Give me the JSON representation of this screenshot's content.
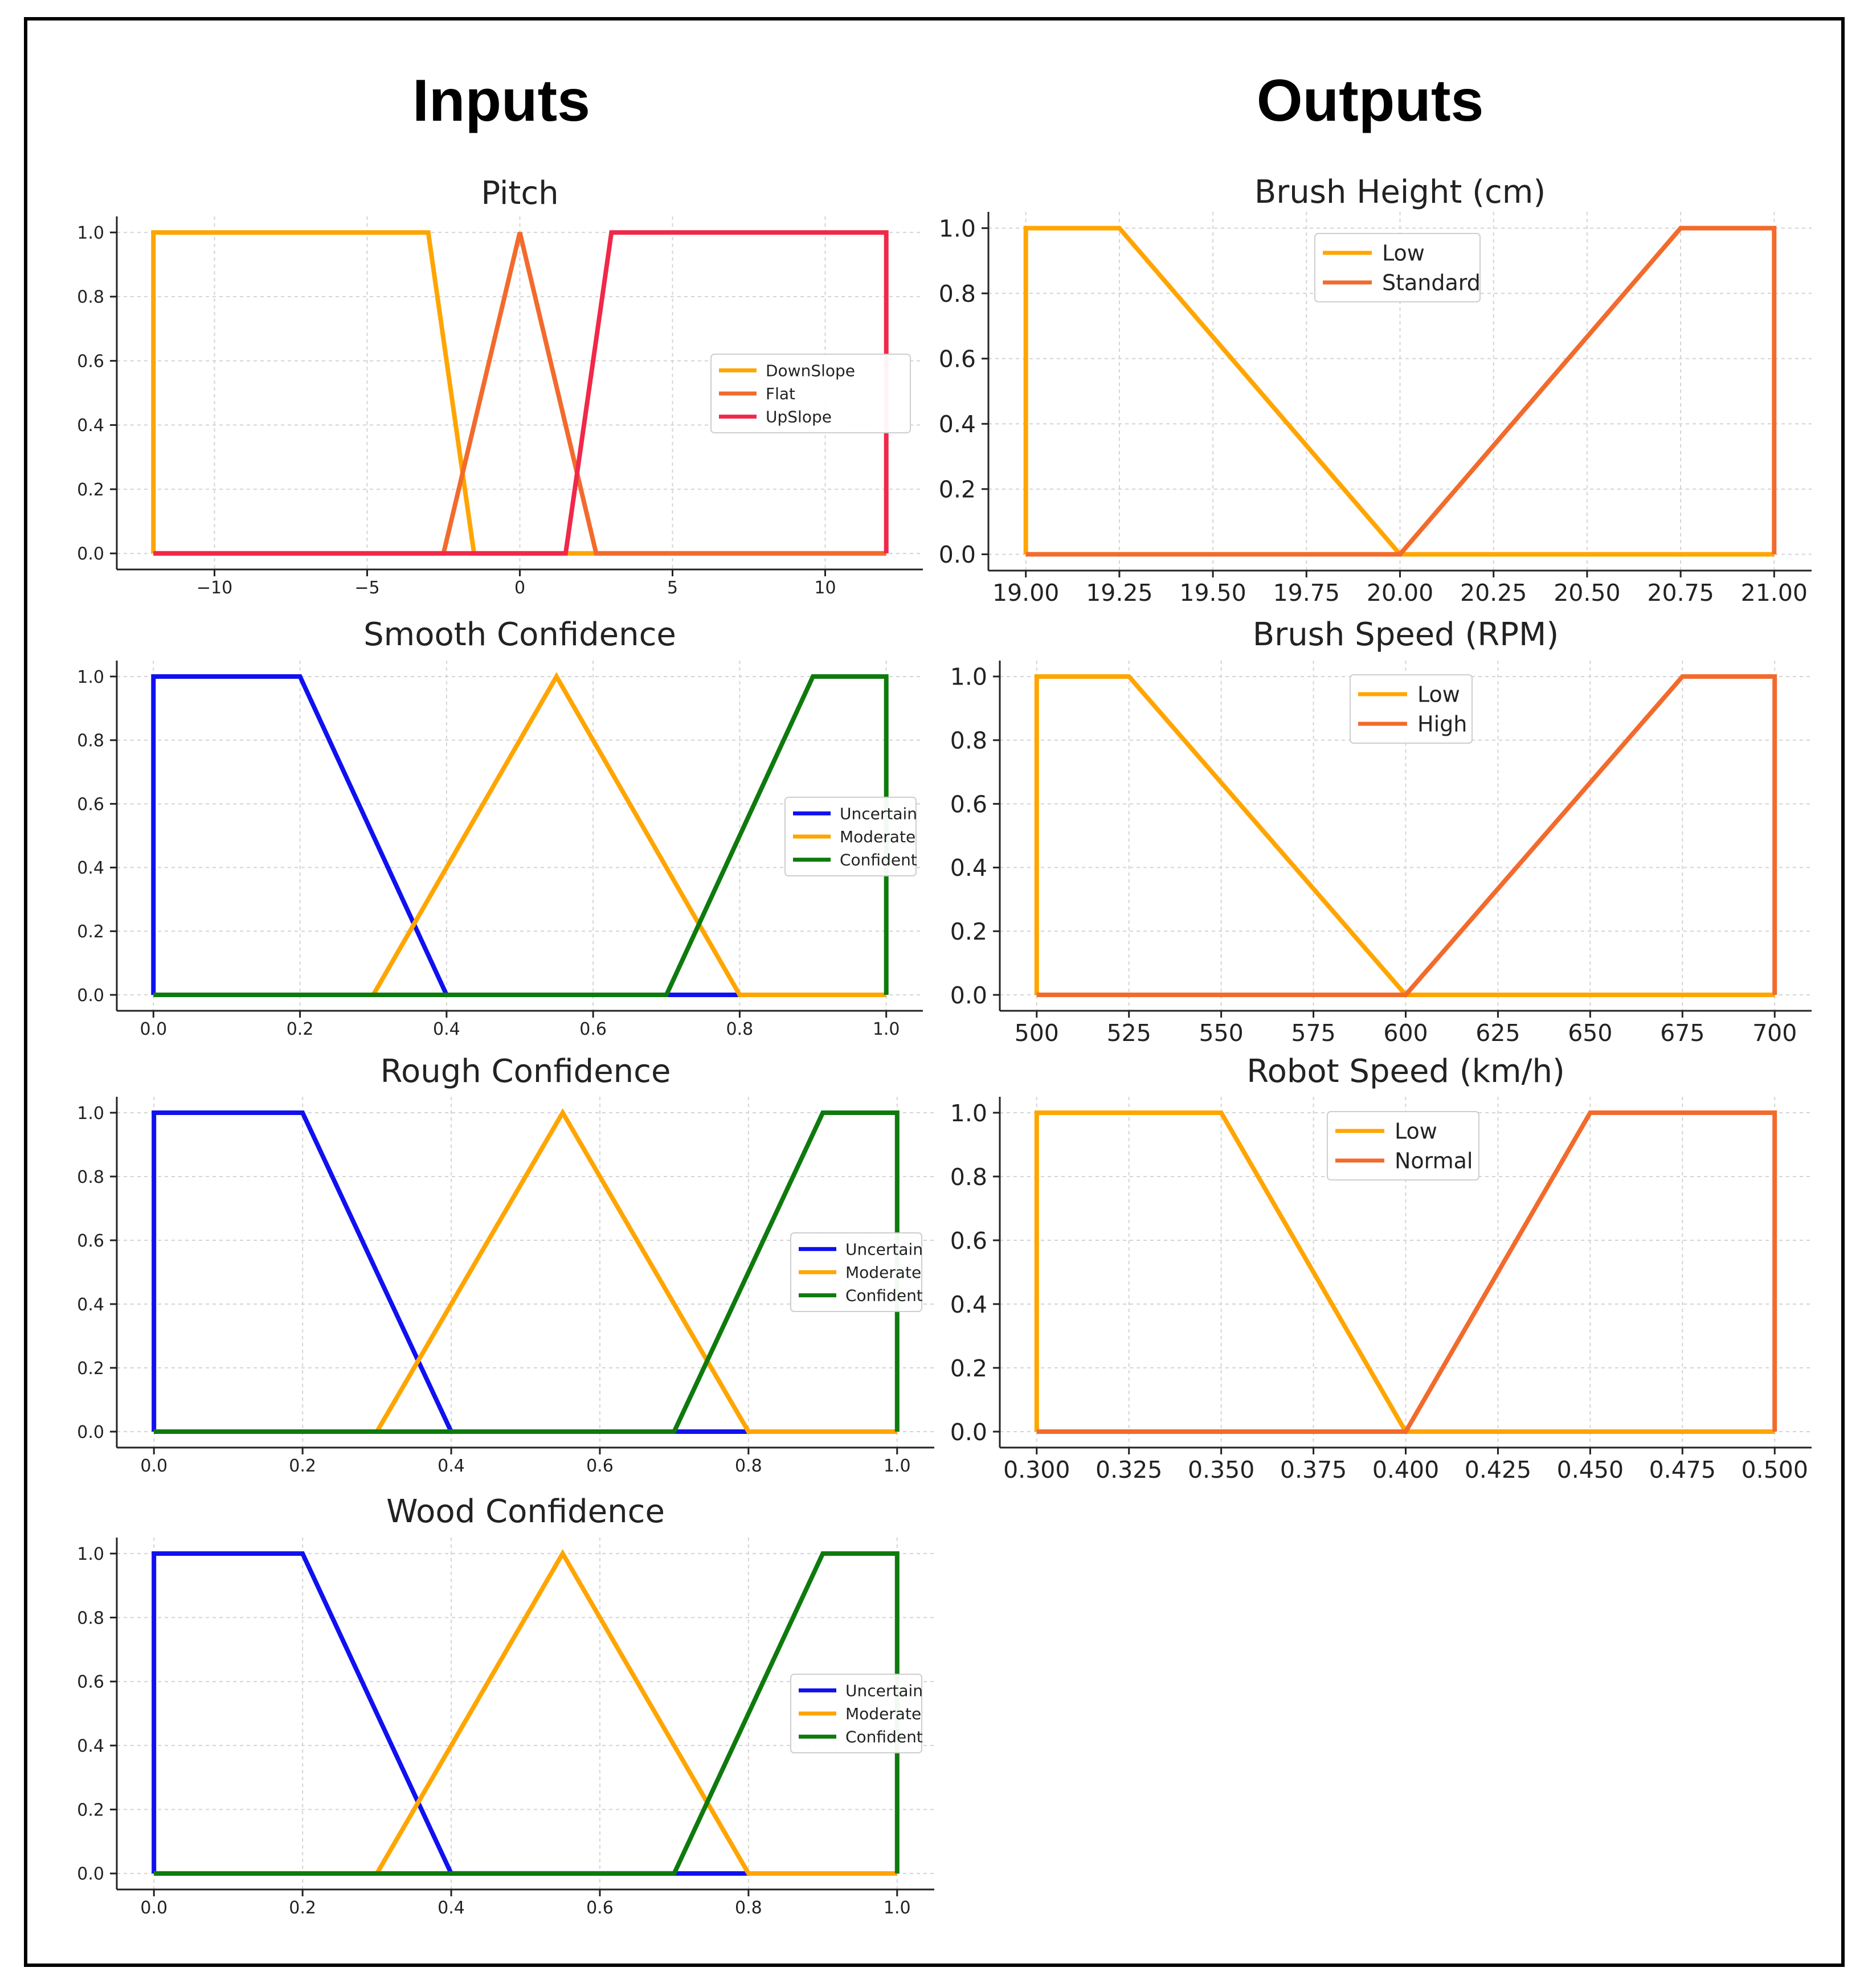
{
  "headings": {
    "inputs": "Inputs",
    "outputs": "Outputs"
  },
  "chart_data": [
    {
      "id": "pitch",
      "type": "line",
      "title": "Pitch",
      "xlim": [
        -13.2,
        13.2
      ],
      "ylim": [
        -0.05,
        1.05
      ],
      "xticks": [
        {
          "v": -10,
          "label": "−10"
        },
        {
          "v": -5,
          "label": "−5"
        },
        {
          "v": 0,
          "label": "0"
        },
        {
          "v": 5,
          "label": "5"
        },
        {
          "v": 10,
          "label": "10"
        }
      ],
      "yticks": [
        0,
        0.2,
        0.4,
        0.6,
        0.8,
        1.0
      ],
      "legend": "center-right",
      "grid": true,
      "series": [
        {
          "name": "DownSlope",
          "color": "#FFA500",
          "points": [
            [
              -12,
              0
            ],
            [
              -12,
              1
            ],
            [
              -3,
              1
            ],
            [
              -1.5,
              0
            ],
            [
              12,
              0
            ]
          ]
        },
        {
          "name": "Flat",
          "color": "#F26B2C",
          "points": [
            [
              -12,
              0
            ],
            [
              -2.5,
              0
            ],
            [
              0,
              1
            ],
            [
              2.5,
              0
            ],
            [
              12,
              0
            ]
          ]
        },
        {
          "name": "UpSlope",
          "color": "#F0284A",
          "points": [
            [
              -12,
              0
            ],
            [
              1.5,
              0
            ],
            [
              3,
              1
            ],
            [
              12,
              1
            ],
            [
              12,
              0
            ]
          ]
        }
      ]
    },
    {
      "id": "smooth",
      "type": "line",
      "title": "Smooth Confidence",
      "xlim": [
        -0.05,
        1.05
      ],
      "ylim": [
        -0.05,
        1.05
      ],
      "xticks": [
        {
          "v": 0,
          "label": "0.0"
        },
        {
          "v": 0.2,
          "label": "0.2"
        },
        {
          "v": 0.4,
          "label": "0.4"
        },
        {
          "v": 0.6,
          "label": "0.6"
        },
        {
          "v": 0.8,
          "label": "0.8"
        },
        {
          "v": 1.0,
          "label": "1.0"
        }
      ],
      "yticks": [
        0,
        0.2,
        0.4,
        0.6,
        0.8,
        1.0
      ],
      "legend": "center-right",
      "grid": true,
      "series": [
        {
          "name": "Uncertain",
          "color": "#1010F0",
          "points": [
            [
              0,
              0
            ],
            [
              0,
              1
            ],
            [
              0.2,
              1
            ],
            [
              0.4,
              0
            ],
            [
              0.7,
              0
            ],
            [
              0.8,
              0
            ]
          ]
        },
        {
          "name": "Moderate",
          "color": "#FFA500",
          "points": [
            [
              0,
              0
            ],
            [
              0.3,
              0
            ],
            [
              0.55,
              1
            ],
            [
              0.8,
              0
            ],
            [
              1.0,
              0
            ]
          ]
        },
        {
          "name": "Confident",
          "color": "#0E7A0E",
          "points": [
            [
              0,
              0
            ],
            [
              0.7,
              0
            ],
            [
              0.9,
              1
            ],
            [
              1.0,
              1
            ],
            [
              1.0,
              0
            ]
          ]
        }
      ]
    },
    {
      "id": "rough",
      "type": "line",
      "title": "Rough Confidence",
      "xlim": [
        -0.05,
        1.05
      ],
      "ylim": [
        -0.05,
        1.05
      ],
      "xticks": [
        {
          "v": 0,
          "label": "0.0"
        },
        {
          "v": 0.2,
          "label": "0.2"
        },
        {
          "v": 0.4,
          "label": "0.4"
        },
        {
          "v": 0.6,
          "label": "0.6"
        },
        {
          "v": 0.8,
          "label": "0.8"
        },
        {
          "v": 1.0,
          "label": "1.0"
        }
      ],
      "yticks": [
        0,
        0.2,
        0.4,
        0.6,
        0.8,
        1.0
      ],
      "legend": "center-right",
      "grid": true,
      "series": [
        {
          "name": "Uncertain",
          "color": "#1010F0",
          "points": [
            [
              0,
              0
            ],
            [
              0,
              1
            ],
            [
              0.2,
              1
            ],
            [
              0.4,
              0
            ],
            [
              0.7,
              0
            ],
            [
              0.8,
              0
            ]
          ]
        },
        {
          "name": "Moderate",
          "color": "#FFA500",
          "points": [
            [
              0,
              0
            ],
            [
              0.3,
              0
            ],
            [
              0.55,
              1
            ],
            [
              0.8,
              0
            ],
            [
              1.0,
              0
            ]
          ]
        },
        {
          "name": "Confident",
          "color": "#0E7A0E",
          "points": [
            [
              0,
              0
            ],
            [
              0.7,
              0
            ],
            [
              0.9,
              1
            ],
            [
              1.0,
              1
            ],
            [
              1.0,
              0
            ]
          ]
        }
      ]
    },
    {
      "id": "wood",
      "type": "line",
      "title": "Wood Confidence",
      "xlim": [
        -0.05,
        1.05
      ],
      "ylim": [
        -0.05,
        1.05
      ],
      "xticks": [
        {
          "v": 0,
          "label": "0.0"
        },
        {
          "v": 0.2,
          "label": "0.2"
        },
        {
          "v": 0.4,
          "label": "0.4"
        },
        {
          "v": 0.6,
          "label": "0.6"
        },
        {
          "v": 0.8,
          "label": "0.8"
        },
        {
          "v": 1.0,
          "label": "1.0"
        }
      ],
      "yticks": [
        0,
        0.2,
        0.4,
        0.6,
        0.8,
        1.0
      ],
      "legend": "center-right",
      "grid": true,
      "series": [
        {
          "name": "Uncertain",
          "color": "#1010F0",
          "points": [
            [
              0,
              0
            ],
            [
              0,
              1
            ],
            [
              0.2,
              1
            ],
            [
              0.4,
              0
            ],
            [
              0.7,
              0
            ],
            [
              0.8,
              0
            ]
          ]
        },
        {
          "name": "Moderate",
          "color": "#FFA500",
          "points": [
            [
              0,
              0
            ],
            [
              0.3,
              0
            ],
            [
              0.55,
              1
            ],
            [
              0.8,
              0
            ],
            [
              1.0,
              0
            ]
          ]
        },
        {
          "name": "Confident",
          "color": "#0E7A0E",
          "points": [
            [
              0,
              0
            ],
            [
              0.7,
              0
            ],
            [
              0.9,
              1
            ],
            [
              1.0,
              1
            ],
            [
              1.0,
              0
            ]
          ]
        }
      ]
    },
    {
      "id": "brush_height",
      "type": "line",
      "title": "Brush Height (cm)",
      "xlim": [
        18.9,
        21.1
      ],
      "ylim": [
        -0.05,
        1.05
      ],
      "xticks": [
        {
          "v": 19.0,
          "label": "19.00"
        },
        {
          "v": 19.25,
          "label": "19.25"
        },
        {
          "v": 19.5,
          "label": "19.50"
        },
        {
          "v": 19.75,
          "label": "19.75"
        },
        {
          "v": 20.0,
          "label": "20.00"
        },
        {
          "v": 20.25,
          "label": "20.25"
        },
        {
          "v": 20.5,
          "label": "20.50"
        },
        {
          "v": 20.75,
          "label": "20.75"
        },
        {
          "v": 21.0,
          "label": "21.00"
        }
      ],
      "yticks": [
        0,
        0.2,
        0.4,
        0.6,
        0.8,
        1.0
      ],
      "legend": "upper-center",
      "grid": true,
      "series": [
        {
          "name": "Low",
          "color": "#FFA500",
          "points": [
            [
              19.0,
              0
            ],
            [
              19.0,
              1
            ],
            [
              19.25,
              1
            ],
            [
              20.0,
              0
            ],
            [
              21.0,
              0
            ]
          ]
        },
        {
          "name": "Standard",
          "color": "#F26B2C",
          "points": [
            [
              19.0,
              0
            ],
            [
              20.0,
              0
            ],
            [
              20.75,
              1
            ],
            [
              21.0,
              1
            ],
            [
              21.0,
              0
            ]
          ]
        }
      ]
    },
    {
      "id": "brush_speed",
      "type": "line",
      "title": "Brush Speed (RPM)",
      "xlim": [
        490,
        710
      ],
      "ylim": [
        -0.05,
        1.05
      ],
      "xticks": [
        {
          "v": 500,
          "label": "500"
        },
        {
          "v": 525,
          "label": "525"
        },
        {
          "v": 550,
          "label": "550"
        },
        {
          "v": 575,
          "label": "575"
        },
        {
          "v": 600,
          "label": "600"
        },
        {
          "v": 625,
          "label": "625"
        },
        {
          "v": 650,
          "label": "650"
        },
        {
          "v": 675,
          "label": "675"
        },
        {
          "v": 700,
          "label": "700"
        }
      ],
      "yticks": [
        0,
        0.2,
        0.4,
        0.6,
        0.8,
        1.0
      ],
      "legend": "upper-center",
      "grid": true,
      "series": [
        {
          "name": "Low",
          "color": "#FFA500",
          "points": [
            [
              500,
              0
            ],
            [
              500,
              1
            ],
            [
              525,
              1
            ],
            [
              600,
              0
            ],
            [
              700,
              0
            ]
          ]
        },
        {
          "name": "High",
          "color": "#F26B2C",
          "points": [
            [
              500,
              0
            ],
            [
              600,
              0
            ],
            [
              675,
              1
            ],
            [
              700,
              1
            ],
            [
              700,
              0
            ]
          ]
        }
      ]
    },
    {
      "id": "robot_speed",
      "type": "line",
      "title": "Robot Speed (km/h)",
      "xlim": [
        0.29,
        0.51
      ],
      "ylim": [
        -0.05,
        1.05
      ],
      "xticks": [
        {
          "v": 0.3,
          "label": "0.300"
        },
        {
          "v": 0.325,
          "label": "0.325"
        },
        {
          "v": 0.35,
          "label": "0.350"
        },
        {
          "v": 0.375,
          "label": "0.375"
        },
        {
          "v": 0.4,
          "label": "0.400"
        },
        {
          "v": 0.425,
          "label": "0.425"
        },
        {
          "v": 0.45,
          "label": "0.450"
        },
        {
          "v": 0.475,
          "label": "0.475"
        },
        {
          "v": 0.5,
          "label": "0.500"
        }
      ],
      "yticks": [
        0,
        0.2,
        0.4,
        0.6,
        0.8,
        1.0
      ],
      "legend": "upper-center",
      "grid": true,
      "series": [
        {
          "name": "Low",
          "color": "#FFA500",
          "points": [
            [
              0.3,
              0
            ],
            [
              0.3,
              1
            ],
            [
              0.35,
              1
            ],
            [
              0.4,
              0
            ],
            [
              0.5,
              0
            ]
          ]
        },
        {
          "name": "Normal",
          "color": "#F26B2C",
          "points": [
            [
              0.3,
              0
            ],
            [
              0.4,
              0
            ],
            [
              0.45,
              1
            ],
            [
              0.5,
              1
            ],
            [
              0.5,
              0
            ]
          ]
        }
      ]
    }
  ]
}
